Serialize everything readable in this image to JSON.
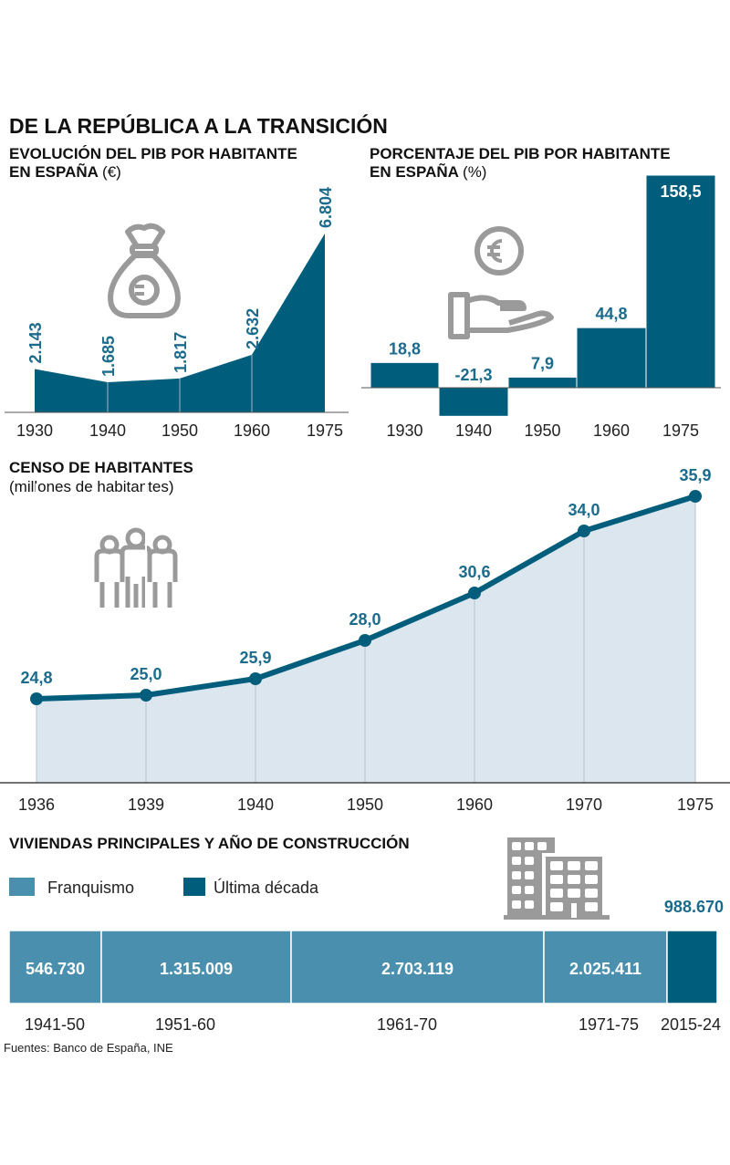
{
  "title": "DE LA REPÚBLICA A LA TRANSICIÓN",
  "source": "Fuentes: Banco de España, INE",
  "colors": {
    "dark": "#005d7c",
    "light": "#4a8fae",
    "area": "#dbe6ef",
    "icon": "#9a9a9a",
    "label": "#1c6b8c"
  },
  "chart_data": [
    {
      "type": "area",
      "title_line1": "EVOLUCIÓN DEL PIB POR HABITANTE",
      "title_line2": "EN ESPAÑA",
      "unit": "(€)",
      "icon": "money-bag-euro-icon",
      "categories": [
        "1930",
        "1940",
        "1950",
        "1960",
        "1975"
      ],
      "values": [
        2143,
        1685,
        1817,
        2632,
        6804
      ],
      "labels": [
        "2.143",
        "1.685",
        "1.817",
        "2.632",
        "6.804"
      ]
    },
    {
      "type": "bar",
      "title_line1": "PORCENTAJE DEL PIB POR HABITANTE",
      "title_line2": "EN ESPAÑA",
      "unit": "(%)",
      "icon": "hand-coin-euro-icon",
      "categories": [
        "1930",
        "1940",
        "1950",
        "1960",
        "1975"
      ],
      "values": [
        18.8,
        -21.3,
        7.9,
        44.8,
        158.5
      ],
      "labels": [
        "18,8",
        "-21,3",
        "7,9",
        "44,8",
        "158,5"
      ]
    },
    {
      "type": "line",
      "title": "CENSO DE HABITANTES",
      "subtitle": "(millones de habitantes)",
      "icon": "people-icon",
      "categories": [
        "1936",
        "1939",
        "1940",
        "1950",
        "1960",
        "1970",
        "1975"
      ],
      "values": [
        24.8,
        25.0,
        25.9,
        28.0,
        30.6,
        34.0,
        35.9
      ],
      "labels": [
        "24,8",
        "25,0",
        "25,9",
        "28,0",
        "30,6",
        "34,0",
        "35,9"
      ]
    },
    {
      "type": "bar",
      "title": "VIVIENDAS PRINCIPALES  Y AÑO DE CONSTRUCCIÓN",
      "icon": "buildings-icon",
      "legend": [
        {
          "name": "Franquismo",
          "color": "#4a8fae"
        },
        {
          "name": "Última década",
          "color": "#005d7c"
        }
      ],
      "categories": [
        "1941-50",
        "1951-60",
        "1961-70",
        "1971-75",
        "2015-24"
      ],
      "values": [
        546730,
        1315009,
        2703119,
        2025411,
        988670
      ],
      "labels": [
        "546.730",
        "1.315.009",
        "2.703.119",
        "2.025.411",
        "988.670"
      ],
      "series_of": [
        "Franquismo",
        "Franquismo",
        "Franquismo",
        "Franquismo",
        "Última década"
      ]
    }
  ]
}
